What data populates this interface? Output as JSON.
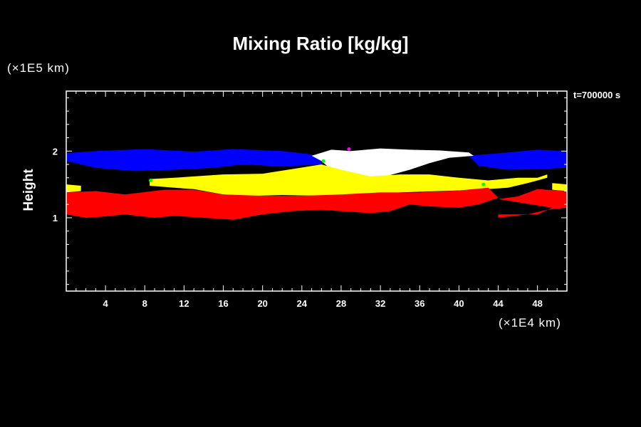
{
  "chart_data": {
    "type": "heatmap",
    "title": "Mixing Ratio [kg/kg]",
    "ylabel": "Height",
    "xlabel": "",
    "x_unit": "(×1E4 km)",
    "y_unit": "(×1E5 km)",
    "annotation": "t=700000 s",
    "xlim": [
      0,
      51
    ],
    "ylim": [
      -0.1,
      2.9
    ],
    "x_ticks": [
      4,
      8,
      12,
      16,
      20,
      24,
      28,
      32,
      36,
      40,
      44,
      48
    ],
    "y_ticks": [
      1,
      2
    ],
    "background": "#000000",
    "colors": {
      "blue": "#0000ff",
      "white": "#ffffff",
      "yellow": "#ffff00",
      "red": "#ff0000",
      "green": "#00ff00",
      "magenta": "#ff00ff"
    },
    "regions": [
      {
        "name": "blue-band-left",
        "color": "#0000ff",
        "points": [
          [
            0,
            1.97
          ],
          [
            3,
            2.0
          ],
          [
            8,
            2.03
          ],
          [
            13,
            1.99
          ],
          [
            17,
            2.03
          ],
          [
            22,
            2.0
          ],
          [
            25,
            1.95
          ],
          [
            26,
            1.9
          ],
          [
            26,
            1.8
          ],
          [
            22,
            1.77
          ],
          [
            18,
            1.8
          ],
          [
            15,
            1.75
          ],
          [
            11,
            1.72
          ],
          [
            7,
            1.7
          ],
          [
            3,
            1.75
          ],
          [
            0,
            1.85
          ]
        ]
      },
      {
        "name": "blue-band-right",
        "color": "#0000ff",
        "points": [
          [
            41,
            1.93
          ],
          [
            45,
            1.98
          ],
          [
            48,
            2.02
          ],
          [
            51,
            2.0
          ],
          [
            51,
            1.75
          ],
          [
            48,
            1.73
          ],
          [
            45,
            1.72
          ],
          [
            42,
            1.78
          ]
        ]
      },
      {
        "name": "white-core",
        "color": "#ffffff",
        "points": [
          [
            25,
            1.93
          ],
          [
            27,
            2.02
          ],
          [
            29,
            2.0
          ],
          [
            32,
            2.04
          ],
          [
            35,
            2.02
          ],
          [
            38,
            2.01
          ],
          [
            41,
            1.98
          ],
          [
            41.5,
            1.93
          ],
          [
            39,
            1.9
          ],
          [
            37,
            1.82
          ],
          [
            35,
            1.72
          ],
          [
            32,
            1.6
          ],
          [
            29,
            1.63
          ],
          [
            27,
            1.72
          ],
          [
            26,
            1.85
          ]
        ]
      },
      {
        "name": "yellow-band",
        "color": "#ffff00",
        "points": [
          [
            8.5,
            1.58
          ],
          [
            11,
            1.6
          ],
          [
            13,
            1.62
          ],
          [
            16,
            1.65
          ],
          [
            20,
            1.66
          ],
          [
            23,
            1.73
          ],
          [
            26,
            1.8
          ],
          [
            28,
            1.72
          ],
          [
            31,
            1.62
          ],
          [
            34,
            1.65
          ],
          [
            37,
            1.65
          ],
          [
            40,
            1.6
          ],
          [
            43,
            1.56
          ],
          [
            46,
            1.6
          ],
          [
            48,
            1.6
          ],
          [
            49,
            1.65
          ],
          [
            49,
            1.6
          ],
          [
            47,
            1.52
          ],
          [
            45,
            1.45
          ],
          [
            42,
            1.42
          ],
          [
            38,
            1.4
          ],
          [
            34,
            1.38
          ],
          [
            30,
            1.35
          ],
          [
            26,
            1.33
          ],
          [
            22,
            1.34
          ],
          [
            19,
            1.33
          ],
          [
            16,
            1.35
          ],
          [
            13,
            1.43
          ],
          [
            11,
            1.45
          ],
          [
            8.5,
            1.48
          ]
        ]
      },
      {
        "name": "yellow-left-edge",
        "color": "#ffff00",
        "points": [
          [
            0,
            1.5
          ],
          [
            1.5,
            1.48
          ],
          [
            1.5,
            1.4
          ],
          [
            0,
            1.38
          ]
        ]
      },
      {
        "name": "yellow-right-edge",
        "color": "#ffff00",
        "points": [
          [
            49.5,
            1.52
          ],
          [
            51,
            1.5
          ],
          [
            51,
            1.4
          ],
          [
            49.5,
            1.42
          ]
        ]
      },
      {
        "name": "red-band",
        "color": "#ff0000",
        "points": [
          [
            0,
            1.38
          ],
          [
            3,
            1.4
          ],
          [
            6,
            1.35
          ],
          [
            10,
            1.42
          ],
          [
            13,
            1.42
          ],
          [
            16,
            1.35
          ],
          [
            20,
            1.33
          ],
          [
            24,
            1.33
          ],
          [
            28,
            1.35
          ],
          [
            32,
            1.38
          ],
          [
            36,
            1.38
          ],
          [
            40,
            1.41
          ],
          [
            43,
            1.45
          ],
          [
            44,
            1.3
          ],
          [
            42,
            1.2
          ],
          [
            40,
            1.15
          ],
          [
            37,
            1.17
          ],
          [
            35,
            1.2
          ],
          [
            33,
            1.1
          ],
          [
            31,
            1.07
          ],
          [
            28,
            1.1
          ],
          [
            26,
            1.12
          ],
          [
            23,
            1.1
          ],
          [
            20,
            1.05
          ],
          [
            17,
            0.97
          ],
          [
            14,
            1.0
          ],
          [
            11,
            1.03
          ],
          [
            9,
            1.0
          ],
          [
            6,
            1.05
          ],
          [
            4,
            1.02
          ],
          [
            2,
            1.0
          ],
          [
            0,
            1.05
          ]
        ]
      },
      {
        "name": "red-right",
        "color": "#ff0000",
        "points": [
          [
            44,
            1.28
          ],
          [
            46,
            1.32
          ],
          [
            48,
            1.43
          ],
          [
            51,
            1.4
          ],
          [
            51,
            1.15
          ],
          [
            49,
            1.12
          ],
          [
            47,
            1.05
          ],
          [
            44,
            1.0
          ],
          [
            44,
            1.05
          ],
          [
            48,
            1.05
          ],
          [
            49.5,
            1.15
          ]
        ]
      }
    ]
  }
}
